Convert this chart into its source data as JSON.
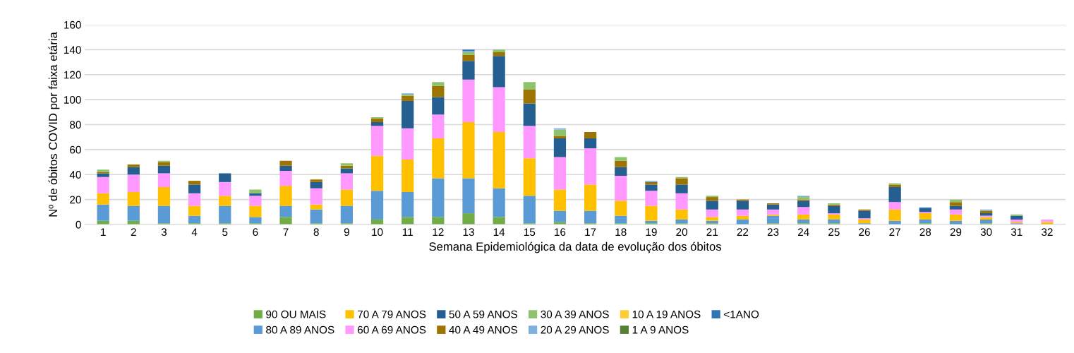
{
  "chart_data": {
    "type": "bar",
    "stacked": true,
    "xlabel": "Semana Epidemiológica da data de evolução dos óbitos",
    "ylabel": "Nº de óbitos COVID por faixa etária",
    "categories": [
      "1",
      "2",
      "3",
      "4",
      "5",
      "6",
      "7",
      "8",
      "9",
      "10",
      "11",
      "12",
      "13",
      "14",
      "15",
      "16",
      "17",
      "18",
      "19",
      "20",
      "21",
      "22",
      "23",
      "24",
      "25",
      "26",
      "27",
      "28",
      "29",
      "30",
      "31",
      "32"
    ],
    "ylim": [
      0,
      160
    ],
    "yticks": [
      0,
      20,
      40,
      60,
      80,
      100,
      120,
      140,
      160
    ],
    "grid": "y",
    "legend": "bottom",
    "series": [
      {
        "name": "90 OU MAIS",
        "color": "#70ad47",
        "values": [
          3,
          3,
          1,
          1,
          1,
          1,
          6,
          1,
          1,
          4,
          6,
          6,
          9,
          6,
          1,
          2,
          1,
          1,
          1,
          1,
          1,
          0,
          1,
          1,
          1,
          0,
          0,
          1,
          0,
          1,
          0,
          0
        ]
      },
      {
        "name": "80 A 89 ANOS",
        "color": "#5b9bd5",
        "values": [
          13,
          12,
          14,
          6,
          14,
          5,
          9,
          11,
          14,
          23,
          20,
          31,
          28,
          23,
          22,
          9,
          10,
          6,
          2,
          3,
          2,
          4,
          6,
          3,
          3,
          1,
          3,
          3,
          3,
          3,
          1,
          0
        ]
      },
      {
        "name": "70 A 79 ANOS",
        "color": "#ffc000",
        "values": [
          9,
          11,
          15,
          8,
          8,
          9,
          16,
          4,
          13,
          28,
          26,
          32,
          45,
          45,
          30,
          17,
          21,
          12,
          12,
          8,
          3,
          3,
          1,
          4,
          4,
          3,
          9,
          5,
          5,
          2,
          1,
          2
        ]
      },
      {
        "name": "60 A 69 ANOS",
        "color": "#ff99ff",
        "values": [
          13,
          14,
          11,
          10,
          11,
          8,
          12,
          13,
          13,
          24,
          25,
          19,
          34,
          36,
          26,
          26,
          29,
          20,
          12,
          13,
          6,
          5,
          4,
          6,
          1,
          1,
          6,
          1,
          4,
          1,
          2,
          2
        ]
      },
      {
        "name": "50 A 59 ANOS",
        "color": "#255e91",
        "values": [
          3,
          6,
          6,
          7,
          7,
          2,
          4,
          5,
          4,
          3,
          22,
          14,
          15,
          25,
          18,
          15,
          8,
          7,
          5,
          7,
          7,
          7,
          4,
          5,
          6,
          6,
          12,
          3,
          3,
          2,
          3,
          0
        ]
      },
      {
        "name": "40 A 49 ANOS",
        "color": "#9e7400",
        "values": [
          1,
          2,
          3,
          3,
          0,
          0,
          4,
          2,
          2,
          3,
          4,
          9,
          5,
          3,
          11,
          2,
          5,
          5,
          2,
          5,
          3,
          1,
          1,
          1,
          1,
          1,
          2,
          0,
          3,
          2,
          0,
          0
        ]
      },
      {
        "name": "30 A 39 ANOS",
        "color": "#8fc36b",
        "values": [
          2,
          0,
          1,
          0,
          0,
          3,
          0,
          0,
          2,
          1,
          1,
          3,
          2,
          2,
          6,
          5,
          0,
          3,
          0,
          1,
          1,
          0,
          0,
          2,
          1,
          0,
          1,
          0,
          2,
          0,
          1,
          0
        ]
      },
      {
        "name": "20 A 29 ANOS",
        "color": "#7fb0de",
        "values": [
          0,
          0,
          0,
          0,
          0,
          0,
          0,
          0,
          0,
          0,
          1,
          0,
          1,
          0,
          0,
          1,
          0,
          0,
          1,
          0,
          0,
          0,
          0,
          1,
          0,
          0,
          0,
          1,
          0,
          1,
          0,
          0
        ]
      },
      {
        "name": "10 A 19 ANOS",
        "color": "#ffcd33",
        "values": [
          0,
          0,
          0,
          0,
          0,
          0,
          0,
          0,
          0,
          0,
          0,
          0,
          0,
          0,
          0,
          0,
          0,
          0,
          0,
          0,
          0,
          0,
          0,
          0,
          0,
          0,
          0,
          0,
          0,
          0,
          0,
          0
        ]
      },
      {
        "name": "1 A 9 ANOS",
        "color": "#548235",
        "values": [
          0,
          0,
          0,
          0,
          0,
          0,
          0,
          0,
          0,
          0,
          0,
          0,
          0,
          0,
          0,
          0,
          0,
          0,
          0,
          0,
          0,
          0,
          0,
          0,
          0,
          0,
          0,
          0,
          0,
          0,
          0,
          0
        ]
      },
      {
        "name": "<1ANO",
        "color": "#2e75b6",
        "values": [
          0,
          0,
          0,
          0,
          0,
          0,
          0,
          0,
          0,
          0,
          0,
          0,
          1,
          0,
          0,
          0,
          0,
          0,
          0,
          0,
          0,
          0,
          0,
          0,
          0,
          0,
          0,
          0,
          0,
          0,
          0,
          0
        ]
      }
    ]
  }
}
